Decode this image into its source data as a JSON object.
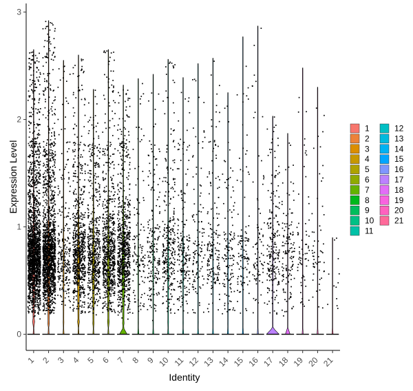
{
  "chart_data": {
    "type": "violin",
    "xlabel": "Identity",
    "ylabel": "Expression Level",
    "ylim": [
      -0.15,
      3.08
    ],
    "yticks": [
      0,
      1,
      2,
      3
    ],
    "grid": false,
    "legend_position": "right",
    "categories": [
      "1",
      "2",
      "3",
      "4",
      "5",
      "6",
      "7",
      "8",
      "9",
      "10",
      "11",
      "12",
      "13",
      "14",
      "15",
      "16",
      "17",
      "18",
      "19",
      "20",
      "21"
    ],
    "colors": [
      "#F8766D",
      "#EC8239",
      "#DB8E00",
      "#C79800",
      "#AEA200",
      "#8FAA00",
      "#64B200",
      "#00B81B",
      "#00BD5C",
      "#00C085",
      "#00C1A7",
      "#00BFC4",
      "#00BADE",
      "#00B2F3",
      "#00A6FF",
      "#7F96FF",
      "#BC81FF",
      "#E26EF7",
      "#F863DF",
      "#FF62BF",
      "#FF6A9A"
    ],
    "max_values": [
      2.65,
      2.92,
      2.55,
      2.6,
      2.28,
      2.65,
      2.32,
      2.38,
      2.42,
      2.56,
      2.39,
      2.52,
      2.57,
      2.25,
      2.77,
      2.87,
      2.03,
      1.87,
      2.48,
      2.3,
      0.9
    ],
    "expressing_fraction": [
      0.42,
      0.45,
      0.17,
      0.33,
      0.31,
      0.33,
      0.36,
      0.08,
      0.1,
      0.17,
      0.12,
      0.08,
      0.07,
      0.09,
      0.08,
      0.06,
      0.06,
      0.03,
      0.04,
      0.03,
      0.01
    ],
    "expressing_density": [
      0.8,
      0.75,
      0.5,
      0.9,
      0.85,
      0.85,
      0.9,
      0.35,
      0.5,
      0.55,
      0.45,
      0.35,
      0.45,
      0.4,
      0.35,
      0.25,
      0.7,
      0.5,
      0.2,
      0.2,
      0.05
    ],
    "zero_width": [
      0.05,
      0.05,
      0.05,
      0.05,
      0.05,
      0.05,
      0.5,
      0.05,
      0.05,
      0.05,
      0.05,
      0.05,
      0.05,
      0.05,
      0.05,
      0.05,
      0.85,
      0.3,
      0.05,
      0.05,
      0.05
    ],
    "n_points": [
      1900,
      1600,
      260,
      700,
      560,
      700,
      760,
      120,
      190,
      300,
      200,
      120,
      170,
      130,
      110,
      85,
      200,
      130,
      65,
      55,
      12
    ]
  }
}
